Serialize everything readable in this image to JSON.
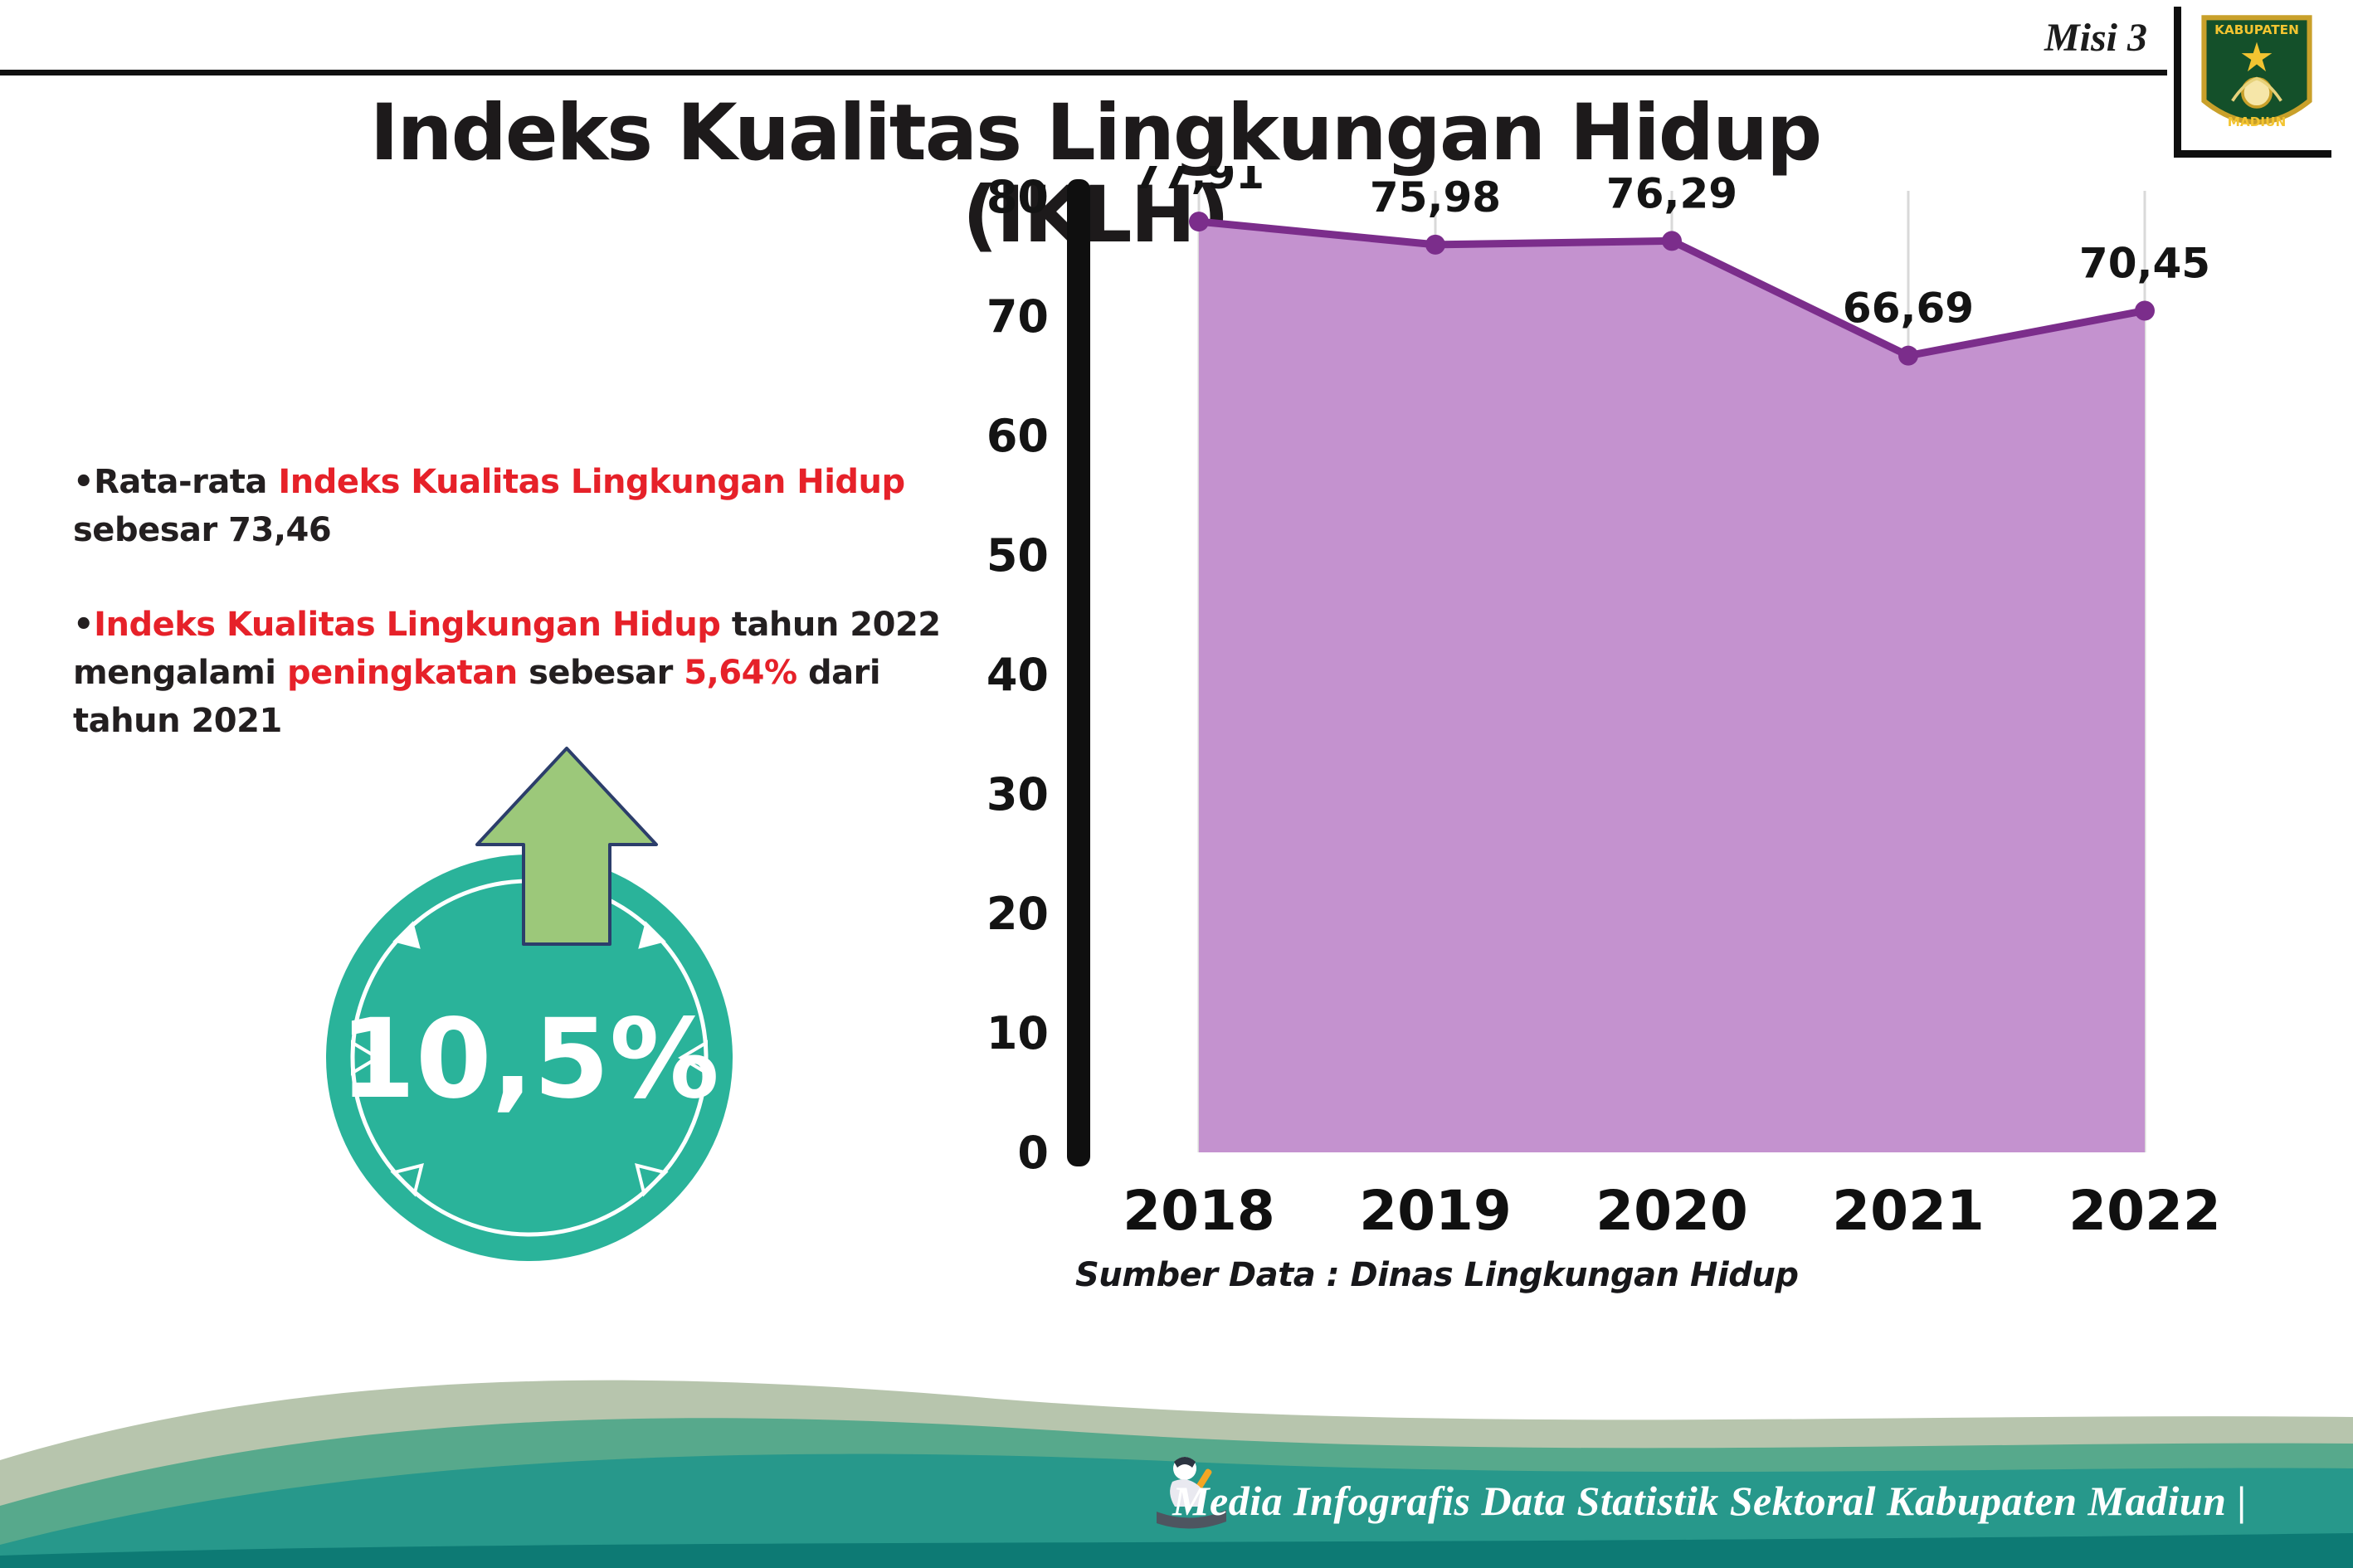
{
  "header": {
    "misi_label": "Misi 3",
    "title": "Indeks Kualitas Lingkungan Hidup (IKLH)"
  },
  "logo": {
    "region_top": "KABUPATEN",
    "region_bottom": "MADIUN"
  },
  "insights": {
    "bullet_glyph": "•",
    "b1_t1": "Rata-rata ",
    "b1_h1": "Indeks Kualitas Lingkungan Hidup",
    "b1_t2": " sebesar 73,46",
    "b2_h1": "Indeks Kualitas Lingkungan Hidup",
    "b2_t1": " tahun 2022 mengalami ",
    "b2_h2": "peningkatan",
    "b2_t2": " sebesar ",
    "b2_h3": "5,64%",
    "b2_t3": " dari tahun 2021"
  },
  "badge": {
    "value": "10,5%"
  },
  "chart_data": {
    "type": "area",
    "categories": [
      "2018",
      "2019",
      "2020",
      "2021",
      "2022"
    ],
    "values": [
      77.91,
      75.98,
      76.29,
      66.69,
      70.45
    ],
    "value_labels": [
      "77,91",
      "75,98",
      "76,29",
      "66,69",
      "70,45"
    ],
    "title": "",
    "xlabel": "",
    "ylabel": "",
    "ylim": [
      0,
      80
    ],
    "yticks": [
      0,
      10,
      20,
      30,
      40,
      50,
      60,
      70,
      80
    ],
    "grid": "vertical",
    "legend": "none",
    "line_color": "#7b2d8b",
    "fill_color": "#c492cf",
    "marker_color": "#7b2d8b",
    "source_note": "Sumber Data : Dinas Lingkungan Hidup"
  },
  "footer": {
    "credit": "Media Infografis Data Statistik Sektoral Kabupaten Madiun |"
  },
  "colors": {
    "highlight_red": "#e62129",
    "badge_teal": "#2ab39a",
    "arrow_green": "#9cc87a",
    "purple_line": "#7b2d8b",
    "purple_fill": "#c492cf",
    "text_dark": "#231f20"
  }
}
